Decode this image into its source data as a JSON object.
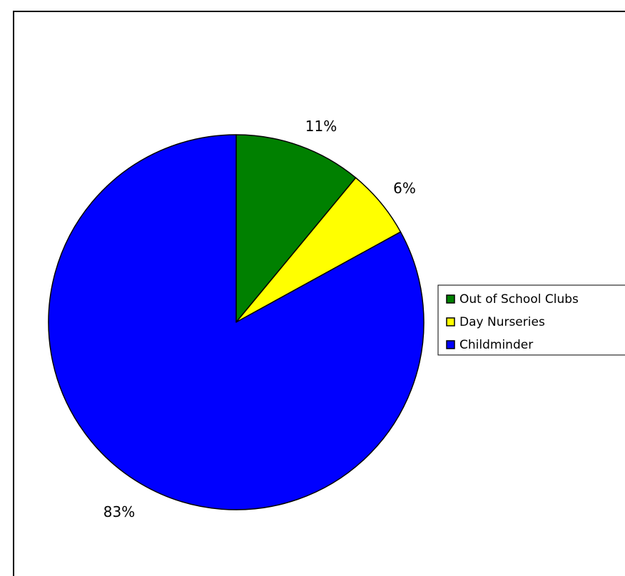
{
  "chart_data": {
    "type": "pie",
    "title": "",
    "start_angle_deg": 0,
    "direction": "clockwise",
    "slices": [
      {
        "label": "Out of School Clubs",
        "value": 11,
        "display": "11%",
        "color": "#008000"
      },
      {
        "label": "Day Nurseries",
        "value": 6,
        "display": "6%",
        "color": "#FFFF00"
      },
      {
        "label": "Childminder",
        "value": 83,
        "display": "83%",
        "color": "#0000FF"
      }
    ],
    "legend": {
      "placement": "right",
      "entries": [
        "Out of School Clubs",
        "Day Nurseries",
        "Childminder"
      ]
    }
  }
}
